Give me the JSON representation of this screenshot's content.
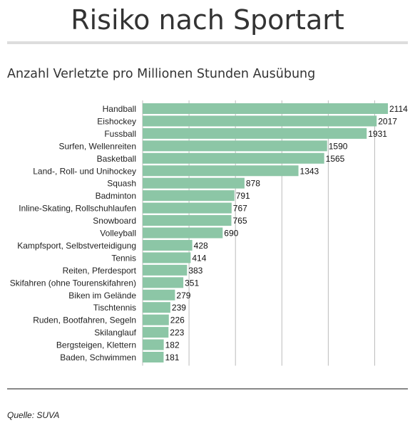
{
  "header": {
    "title": "Risiko nach Sportart",
    "subtitle": "Anzahl Verletzte pro Millionen Stunden Ausübung"
  },
  "footer": {
    "source": "Quelle: SUVA"
  },
  "chart_data": {
    "type": "bar",
    "orientation": "horizontal",
    "title": "Risiko nach Sportart",
    "subtitle": "Anzahl Verletzte pro Millionen Stunden Ausübung",
    "categories": [
      "Handball",
      "Eishockey",
      "Fussball",
      "Surfen, Wellenreiten",
      "Basketball",
      "Land-, Roll- und Unihockey",
      "Squash",
      "Badminton",
      "Inline-Skating, Rollschuhlaufen",
      "Snowboard",
      "Volleyball",
      "Kampfsport, Selbstverteidigung",
      "Tennis",
      "Reiten, Pferdesport",
      "Skifahren (ohne Tourenskifahren)",
      "Biken im Gelände",
      "Tischtennis",
      "Ruden, Bootfahren, Segeln",
      "Skilanglauf",
      "Bergsteigen, Klettern",
      "Baden, Schwimmen"
    ],
    "values": [
      2114,
      2017,
      1931,
      1590,
      1565,
      1343,
      878,
      791,
      767,
      765,
      690,
      428,
      414,
      383,
      351,
      279,
      239,
      226,
      223,
      182,
      181
    ],
    "value_labels": [
      "2114",
      "2017",
      "1931",
      "1590",
      "1565",
      "1343",
      "878",
      "791",
      "767",
      "765",
      "690",
      "428",
      "414",
      "383",
      "351",
      "279",
      "239",
      "226",
      "223",
      "182",
      "181"
    ],
    "xlim": [
      0,
      2200
    ],
    "grid": true,
    "grid_step": 400,
    "bar_color": "#8cc6a6",
    "grid_color": "#bbbbbb",
    "xlabel": "",
    "ylabel": "",
    "source": "Quelle: SUVA"
  }
}
